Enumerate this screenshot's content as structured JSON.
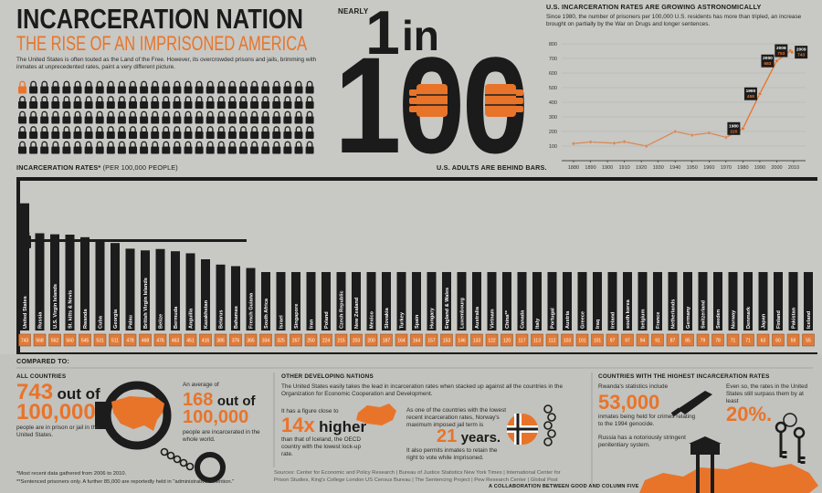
{
  "header": {
    "title": "INCARCERATION NATION",
    "subtitle": "THE RISE OF AN IMPRISONED AMERICA",
    "intro": "The United States is often touted as the Land of the Free. However, its overcrowded prisons and jails, brimming with inmates at unprecedented rates, paint a very different picture."
  },
  "headline": {
    "kicker": "NEARLY",
    "one": "1",
    "in": "in",
    "hundred": "100",
    "caption": "U.S. ADULTS ARE BEHIND BARS."
  },
  "chart_data": [
    {
      "type": "line",
      "title": "U.S. INCARCERATION RATES ARE GROWING ASTRONOMICALLY",
      "subtitle": "Since 1980, the number of prisoners per 100,000 U.S. residents has more than tripled, an increase brought on partially by the War on Drugs and longer sentences.",
      "xlim": [
        1873,
        2017
      ],
      "xticks": [
        1880,
        1890,
        1900,
        1910,
        1920,
        1930,
        1940,
        1950,
        1960,
        1970,
        1980,
        1990,
        2000,
        2010
      ],
      "ylim": [
        0,
        850
      ],
      "yticks": [
        100,
        200,
        300,
        400,
        500,
        600,
        700,
        800
      ],
      "grid": true,
      "series": [
        {
          "color": "#d98a55",
          "data_labels": false,
          "x": [
            1880,
            1890,
            1904,
            1910,
            1923,
            1940,
            1950,
            1960,
            1970
          ],
          "values": [
            117,
            128,
            120,
            130,
            100,
            200,
            175,
            190,
            160
          ]
        },
        {
          "color": "#e8742a",
          "data_labels": true,
          "x": [
            1980,
            1990,
            2000,
            2008,
            2009
          ],
          "values": [
            220,
            458,
            683,
            753,
            743
          ]
        }
      ]
    },
    {
      "type": "bar",
      "title": "INCARCERATION RATES*",
      "subtitle": "(PER 100,000 PEOPLE)",
      "color": "#1c1c1c",
      "label_color": "#e07b39",
      "ylim": [
        0,
        800
      ],
      "categories": [
        "United States",
        "Russia",
        "U.S. Virgin Islands",
        "St. kitts & Nevis",
        "Rwanda",
        "Cuba",
        "Georgia",
        "Palau",
        "British Virgin Islands",
        "Belize",
        "Bermuda",
        "Anguilla",
        "Kazakhstan",
        "Belarus",
        "Bahamas",
        "French Guiana",
        "South Africa",
        "Israel",
        "Singapore",
        "Iran",
        "Poland",
        "Czech Republic",
        "New Zealand",
        "Mexico",
        "Slovakia",
        "Turkey",
        "Spain",
        "Hungary",
        "England & Wales",
        "Luxembourg",
        "Australia",
        "Vietnam",
        "China**",
        "Canada",
        "Italy",
        "Portugal",
        "Austria",
        "Greece",
        "Iraq",
        "Ireland",
        "south korea",
        "belgium",
        "France",
        "Netherlands",
        "Germany",
        "Switzerland",
        "Sweden",
        "Norway",
        "Denmark",
        "Japan",
        "Finland",
        "Pakistan",
        "Iceland"
      ],
      "values": [
        743,
        568,
        562,
        560,
        545,
        531,
        511,
        478,
        468,
        476,
        463,
        451,
        416,
        385,
        376,
        365,
        334,
        325,
        267,
        250,
        224,
        215,
        203,
        200,
        187,
        164,
        164,
        157,
        153,
        146,
        133,
        122,
        120,
        117,
        113,
        112,
        103,
        101,
        101,
        97,
        97,
        94,
        91,
        87,
        85,
        79,
        78,
        71,
        71,
        63,
        60,
        59,
        55
      ]
    }
  ],
  "compared": {
    "heading": "COMPARED TO:",
    "all_countries": {
      "title": "ALL COUNTRIES",
      "us_count": "743",
      "out_of": "out of",
      "us_total": "100,000",
      "us_text": "people are in prison or jail in the United States.",
      "avg_intro": "An average of",
      "world_count": "168",
      "world_out_of": "out of",
      "world_total": "100,000",
      "world_text": "people are incarcerated in the whole world."
    },
    "developing": {
      "title": "OTHER DEVELOPING NATIONS",
      "text": "The United States easily takes the lead in incarceration rates when stacked up against all the countries in the Organization for Economic Cooperation and Development.",
      "figure_intro": "It has a figure close to",
      "figure": "14x",
      "figure_word": "higher",
      "figure_text": "than that of Iceland, the OECD country with the lowest lock-up rate.",
      "norway_text": "As one of the countries with the lowest recent incarceration rates, Norway's maximum imposed jail term is",
      "norway_years": "21",
      "norway_unit": "years.",
      "norway_vote": "It also permits inmates to retain the right to vote while imprisoned."
    },
    "highest": {
      "title": "COUNTRIES WITH THE HIGHEST INCARCERATION RATES",
      "rwanda_intro": "Rwanda's statistics include",
      "rwanda_count": "53,000",
      "rwanda_text": "inmates being held for crimes relating to the 1994 genocide.",
      "russia_text": "Russia has a notoriously stringent penitentiary system.",
      "surpass_text": "Even so, the rates in the United States still surpass them by at least",
      "surpass_pct": "20%."
    }
  },
  "footnotes": [
    "*Most recent data gathered from 2006 to 2010.",
    "**Sentenced prisoners only. A further 85,000 are reportedly held in \"administrative detention.\""
  ],
  "sources": "Sources: Center for Economic and Policy Research | Bureau of Justice Statistics New York Times | International Center for Prison Studies, King's College London US Census Bureau | The Sentencing Project | Pew Research Center | Global Post",
  "credit": "A COLLABORATION BETWEEN GOOD AND COLUMN FIVE"
}
